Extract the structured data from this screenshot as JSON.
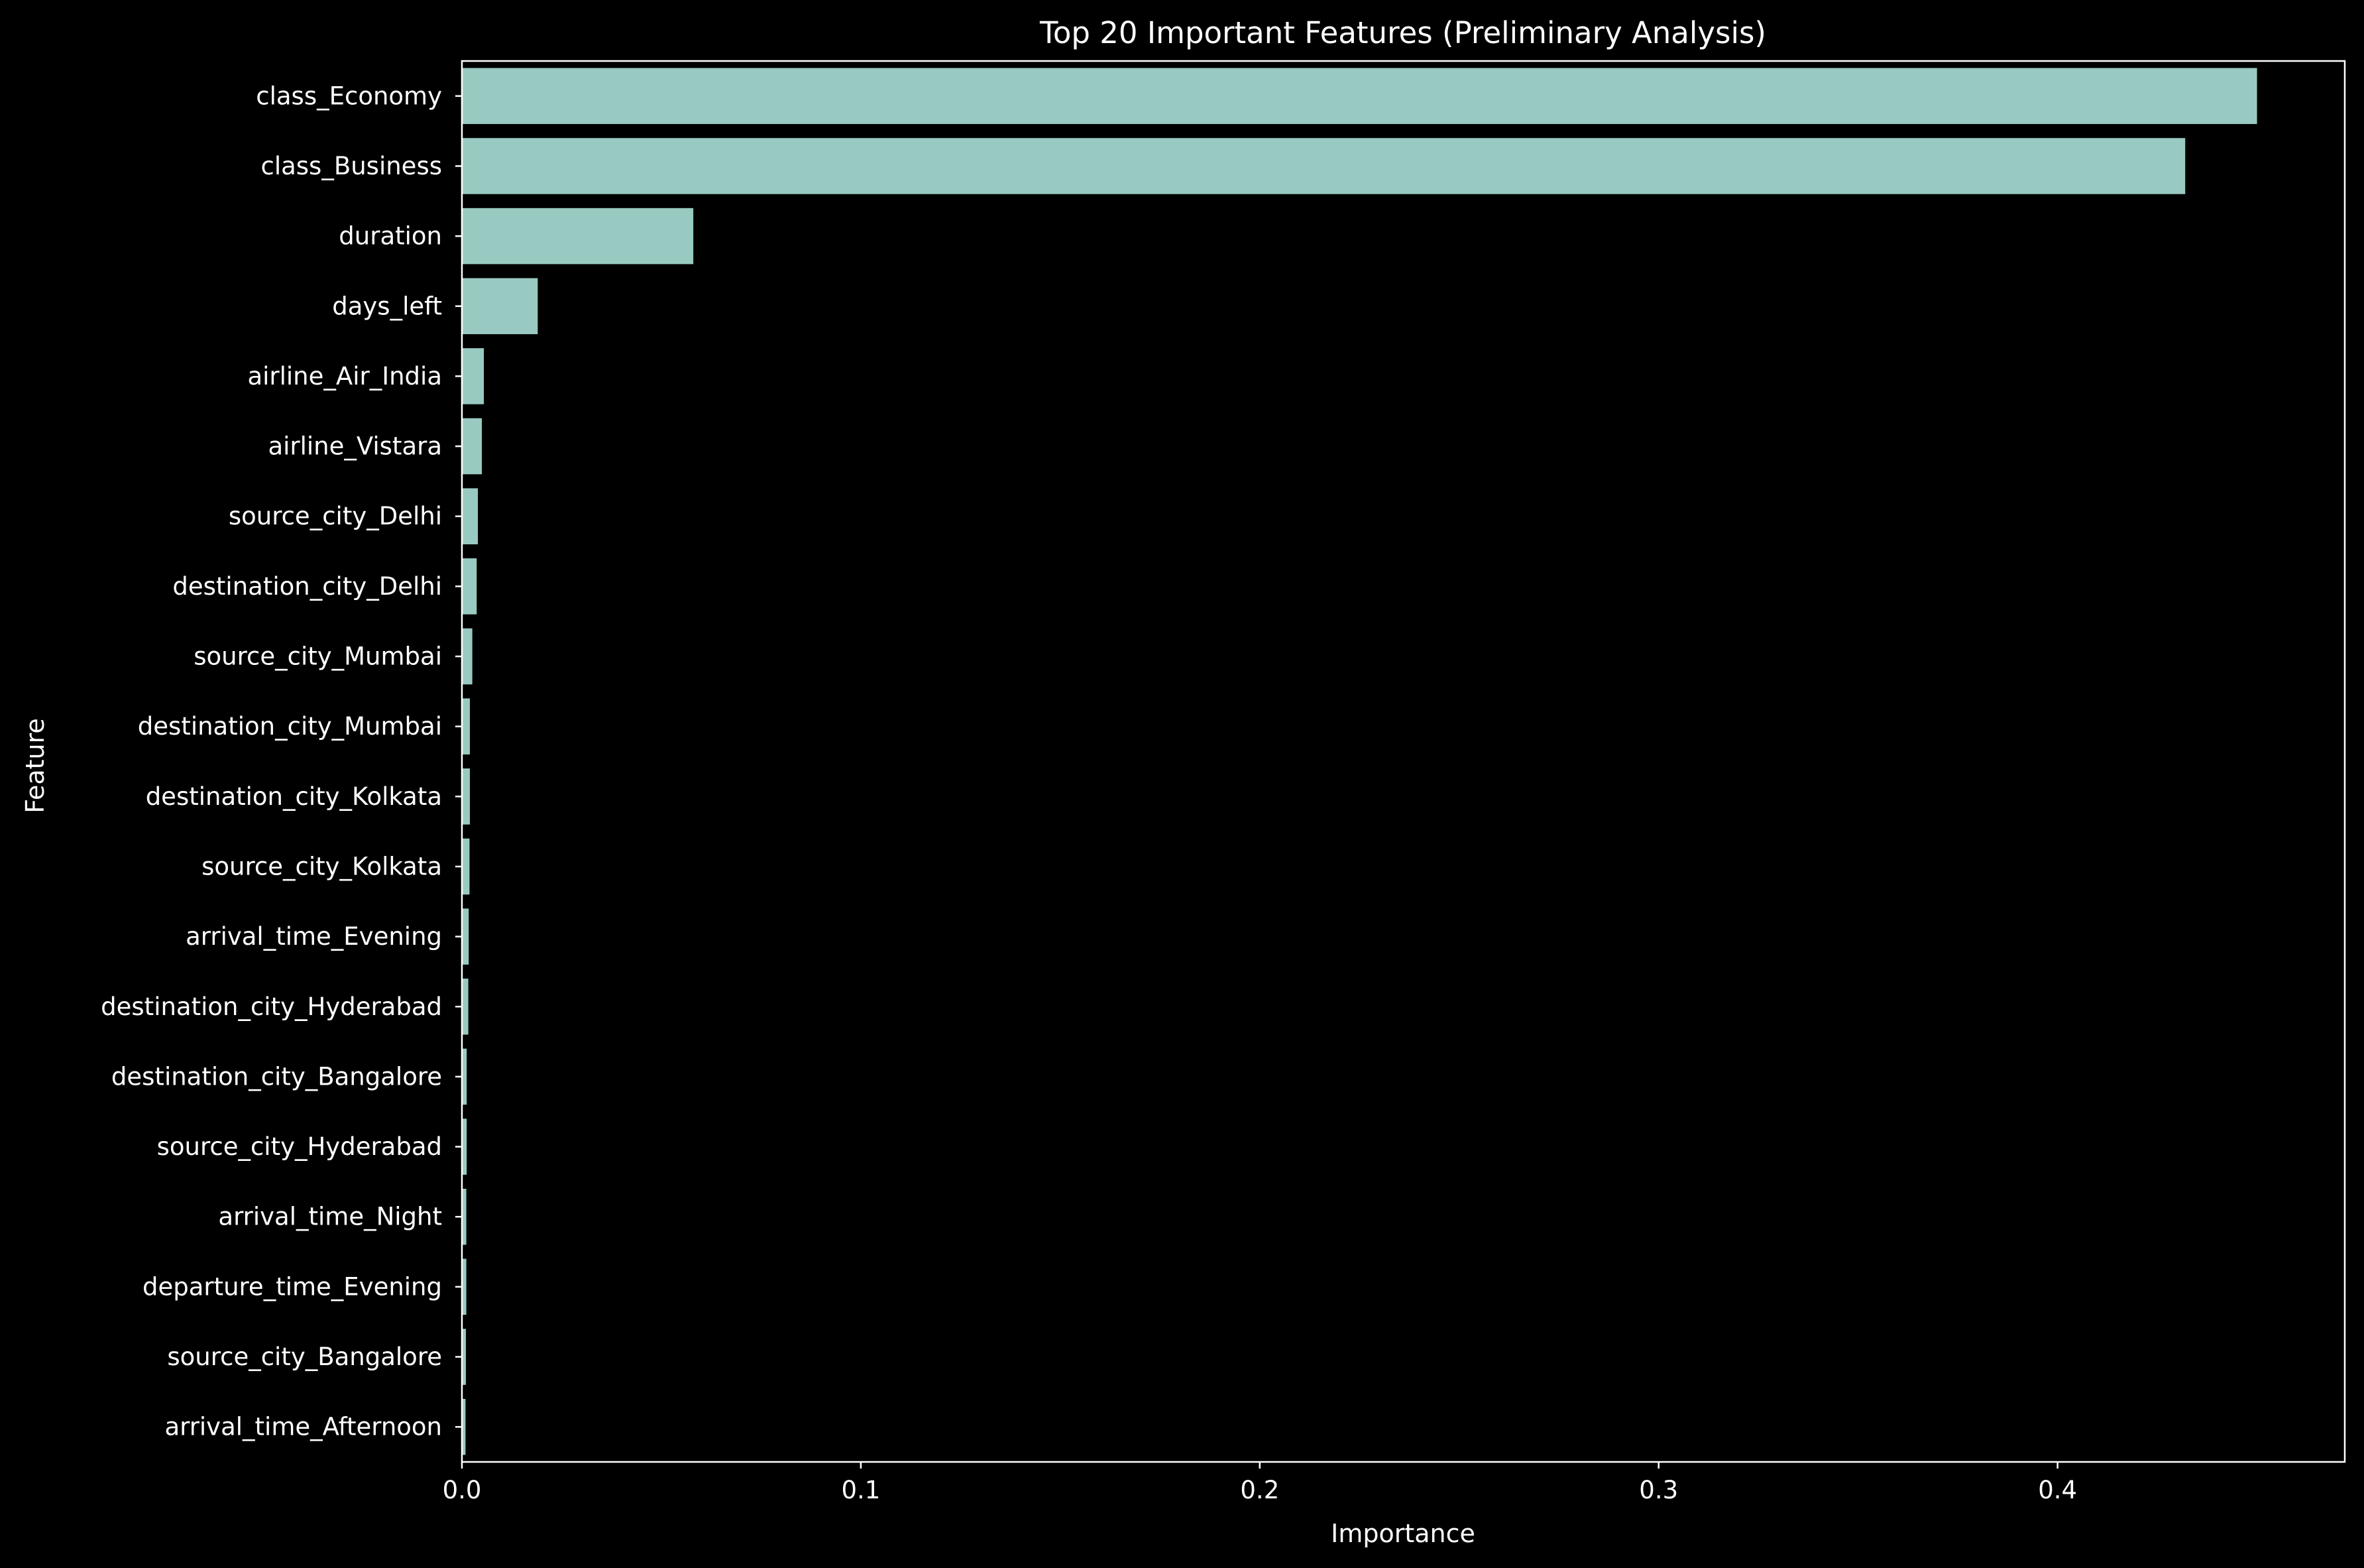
{
  "chart_data": {
    "type": "bar",
    "orientation": "horizontal",
    "title": "Top 20 Important Features (Preliminary Analysis)",
    "xlabel": "Importance",
    "ylabel": "Feature",
    "xlim": [
      0,
      0.472
    ],
    "xticks": [
      0.0,
      0.1,
      0.2,
      0.3,
      0.4
    ],
    "xtick_labels": [
      "0.0",
      "0.1",
      "0.2",
      "0.3",
      "0.4"
    ],
    "grid": false,
    "legend": "none",
    "bar_color": "#99cac1",
    "background_color": "#000000",
    "text_color": "#ffffff",
    "categories": [
      "class_Economy",
      "class_Business",
      "duration",
      "days_left",
      "airline_Air_India",
      "airline_Vistara",
      "source_city_Delhi",
      "destination_city_Delhi",
      "source_city_Mumbai",
      "destination_city_Mumbai",
      "destination_city_Kolkata",
      "source_city_Kolkata",
      "arrival_time_Evening",
      "destination_city_Hyderabad",
      "destination_city_Bangalore",
      "source_city_Hyderabad",
      "arrival_time_Night",
      "departure_time_Evening",
      "source_city_Bangalore",
      "arrival_time_Afternoon"
    ],
    "values": [
      0.45,
      0.432,
      0.058,
      0.019,
      0.0055,
      0.005,
      0.004,
      0.0037,
      0.0026,
      0.002,
      0.002,
      0.0019,
      0.0017,
      0.0016,
      0.0012,
      0.0012,
      0.0011,
      0.0011,
      0.001,
      0.0009
    ]
  }
}
